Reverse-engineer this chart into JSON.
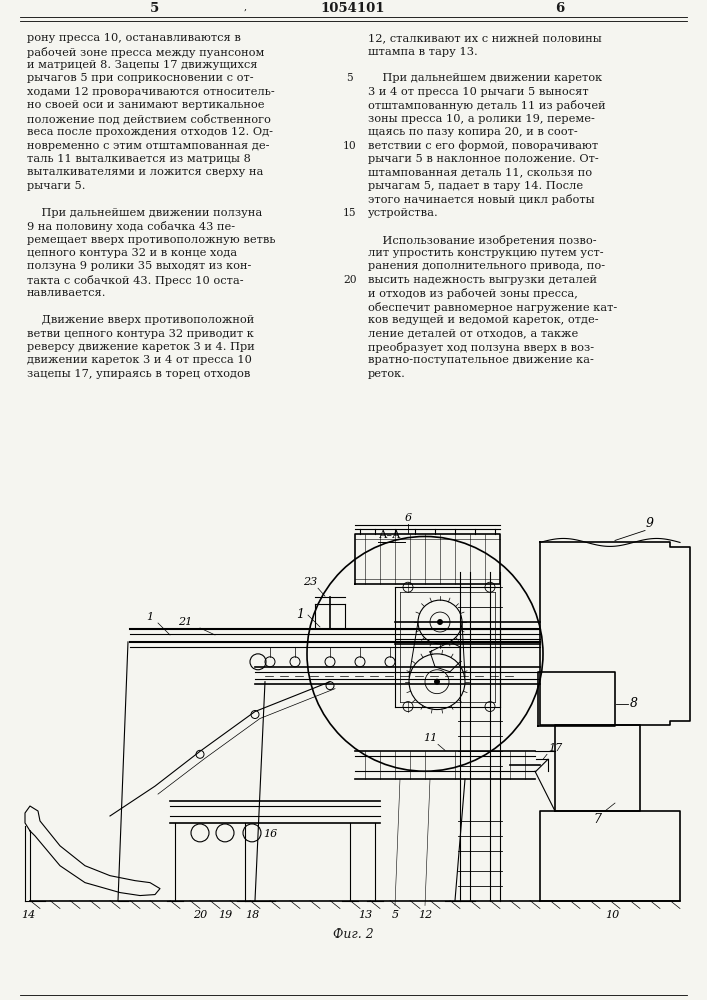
{
  "page_width": 7.07,
  "page_height": 10.0,
  "bg_color": "#f5f5f0",
  "page_num_left": "5",
  "page_num_center": "1054101",
  "page_num_right": "6",
  "col1_text": [
    "рону пресса 10, останавливаются в",
    "рабочей зоне пресса между пуансоном",
    "и матрицей 8. Зацепы 17 движущихся",
    "рычагов 5 при соприкосновении с от-",
    "ходами 12 проворачиваются относитель-",
    "но своей оси и занимают вертикальное",
    "положение под действием собственного",
    "веса после прохождения отходов 12. Од-",
    "новременно с этим отштампованная де-",
    "таль 11 выталкивается из матрицы 8",
    "выталкивателями и ложится сверху на",
    "рычаги 5.",
    "",
    "    При дальнейшем движении ползуна",
    "9 на половину хода собачка 43 пе-",
    "ремещает вверх противоположную ветвь",
    "цепного контура 32 и в конце хода",
    "ползуна 9 ролики 35 выходят из кон-",
    "такта с собачкой 43. Пресс 10 оста-",
    "навливается.",
    "",
    "    Движение вверх противоположной",
    "ветви цепного контура 32 приводит к",
    "реверсу движение кареток 3 и 4. При",
    "движении кареток 3 и 4 от пресса 10",
    "зацепы 17, упираясь в торец отходов"
  ],
  "col2_text": [
    "12, сталкивают их с нижней половины",
    "штампа в тару 13.",
    "",
    "    При дальнейшем движении кареток",
    "3 и 4 от пресса 10 рычаги 5 выносят",
    "отштампованную деталь 11 из рабочей",
    "зоны пресса 10, а ролики 19, переме-",
    "щаясь по пазу копира 20, и в соот-",
    "ветствии с его формой, поворачивают",
    "рычаги 5 в наклонное положение. От-",
    "штампованная деталь 11, скользя по",
    "рычагам 5, падает в тару 14. После",
    "этого начинается новый цикл работы",
    "устройства.",
    "",
    "    Использование изобретения позво-",
    "лит упростить конструкцию путем уст-",
    "ранения дополнительного привода, по-",
    "высить надежность выгрузки деталей",
    "и отходов из рабочей зоны пресса,",
    "обеспечит равномерное нагружение кат-",
    "ков ведущей и ведомой кареток, отде-",
    "ление деталей от отходов, а также",
    "преобразует ход ползуна вверх в воз-",
    "вратно-поступательное движение ка-",
    "реток."
  ],
  "line_numbers": {
    "3": "5",
    "8": "10",
    "13": "15",
    "18": "20"
  },
  "fig_label": "Фиг. 2",
  "text_color": "#1a1a1a",
  "font_size_body": 8.2,
  "font_size_header": 9.5
}
